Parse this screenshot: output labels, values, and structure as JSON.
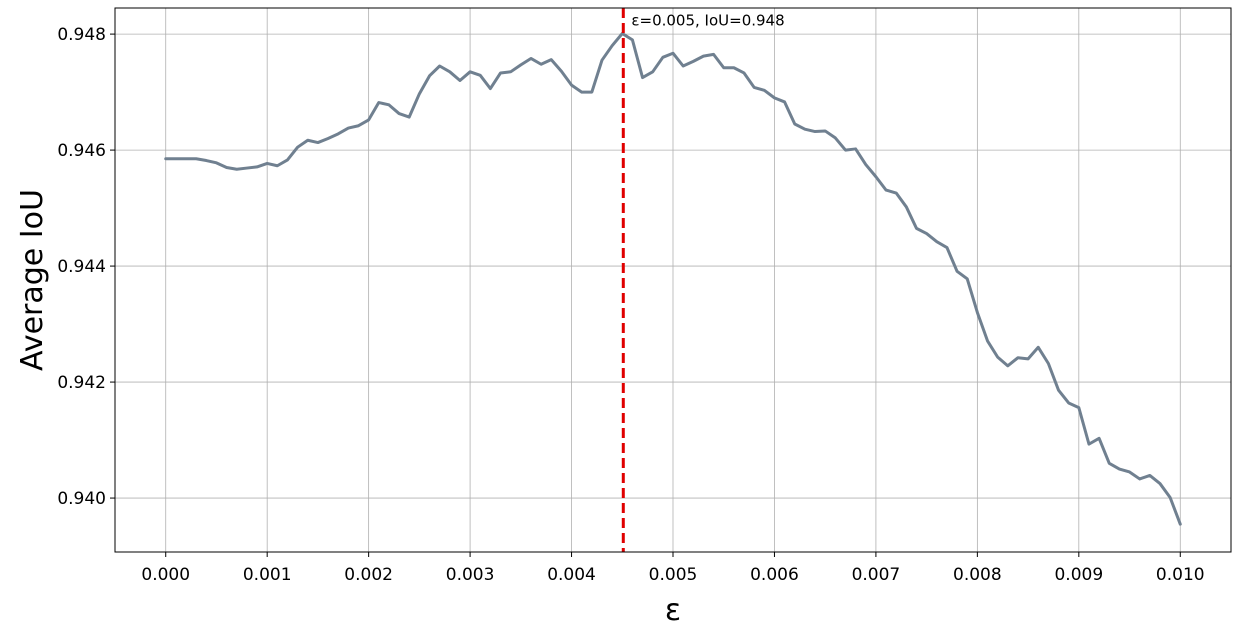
{
  "chart_data": {
    "type": "line",
    "xlabel": "ε",
    "ylabel": "Average IoU",
    "xlim": [
      -0.0005,
      0.0105
    ],
    "ylim": [
      0.93907,
      0.94845
    ],
    "xticks": [
      "0.000",
      "0.001",
      "0.002",
      "0.003",
      "0.004",
      "0.005",
      "0.006",
      "0.007",
      "0.008",
      "0.009",
      "0.010"
    ],
    "yticks": [
      "0.940",
      "0.942",
      "0.944",
      "0.946",
      "0.948"
    ],
    "grid": true,
    "series": [
      {
        "color": "#708090",
        "x": [
          0.0,
          0.0001,
          0.0002,
          0.0003,
          0.0004,
          0.0005,
          0.0006,
          0.0007,
          0.0008,
          0.0009,
          0.001,
          0.0011,
          0.0012,
          0.0013,
          0.0014,
          0.0015,
          0.0016,
          0.0017,
          0.0018,
          0.0019,
          0.002,
          0.0021,
          0.0022,
          0.0023,
          0.0024,
          0.0025,
          0.0026,
          0.0027,
          0.0028,
          0.0029,
          0.003,
          0.0031,
          0.0032,
          0.0033,
          0.0034,
          0.0035,
          0.0036,
          0.0037,
          0.0038,
          0.0039,
          0.004,
          0.0041,
          0.0042,
          0.0043,
          0.0044,
          0.0045,
          0.0046,
          0.0047,
          0.0048,
          0.0049,
          0.005,
          0.0051,
          0.0052,
          0.0053,
          0.0054,
          0.0055,
          0.0056,
          0.0057,
          0.0058,
          0.0059,
          0.006,
          0.0061,
          0.0062,
          0.0063,
          0.0064,
          0.0065,
          0.0066,
          0.0067,
          0.0068,
          0.0069,
          0.007,
          0.0071,
          0.0072,
          0.0073,
          0.0074,
          0.0075,
          0.0076,
          0.0077,
          0.0078,
          0.0079,
          0.008,
          0.0081,
          0.0082,
          0.0083,
          0.0084,
          0.0085,
          0.0086,
          0.0087,
          0.0088,
          0.0089,
          0.009,
          0.0091,
          0.0092,
          0.0093,
          0.0094,
          0.0095,
          0.0096,
          0.0097,
          0.0098,
          0.0099,
          0.01
        ],
        "y": [
          0.94585,
          0.94585,
          0.94585,
          0.94585,
          0.94582,
          0.94578,
          0.9457,
          0.94567,
          0.94569,
          0.94571,
          0.94577,
          0.94573,
          0.94583,
          0.94605,
          0.94617,
          0.94613,
          0.9462,
          0.94628,
          0.94638,
          0.94642,
          0.94652,
          0.94682,
          0.94678,
          0.94663,
          0.94657,
          0.94697,
          0.94728,
          0.94745,
          0.94735,
          0.9472,
          0.94735,
          0.94729,
          0.94706,
          0.94733,
          0.94735,
          0.94747,
          0.94758,
          0.94748,
          0.94756,
          0.94736,
          0.94712,
          0.947,
          0.947,
          0.94755,
          0.9478,
          0.94801,
          0.9479,
          0.94725,
          0.94735,
          0.9476,
          0.94767,
          0.94745,
          0.94753,
          0.94762,
          0.94765,
          0.94742,
          0.94742,
          0.94733,
          0.94708,
          0.94703,
          0.9469,
          0.94683,
          0.94645,
          0.94636,
          0.94632,
          0.94633,
          0.94621,
          0.946,
          0.94602,
          0.94575,
          0.94554,
          0.94531,
          0.94526,
          0.94502,
          0.94465,
          0.94456,
          0.94442,
          0.94432,
          0.94391,
          0.94378,
          0.9432,
          0.94271,
          0.94243,
          0.94228,
          0.94242,
          0.9424,
          0.9426,
          0.94232,
          0.94186,
          0.94164,
          0.94156,
          0.94093,
          0.94103,
          0.9406,
          0.9405,
          0.94045,
          0.94033,
          0.94039,
          0.94025,
          0.94001,
          0.93955
        ]
      }
    ],
    "vline": {
      "x": 0.00451,
      "color": "#e00000",
      "style": "dashed"
    },
    "annotation": {
      "text": "ε=0.005, IoU=0.948",
      "x": 0.00459,
      "y": 0.94815
    }
  }
}
